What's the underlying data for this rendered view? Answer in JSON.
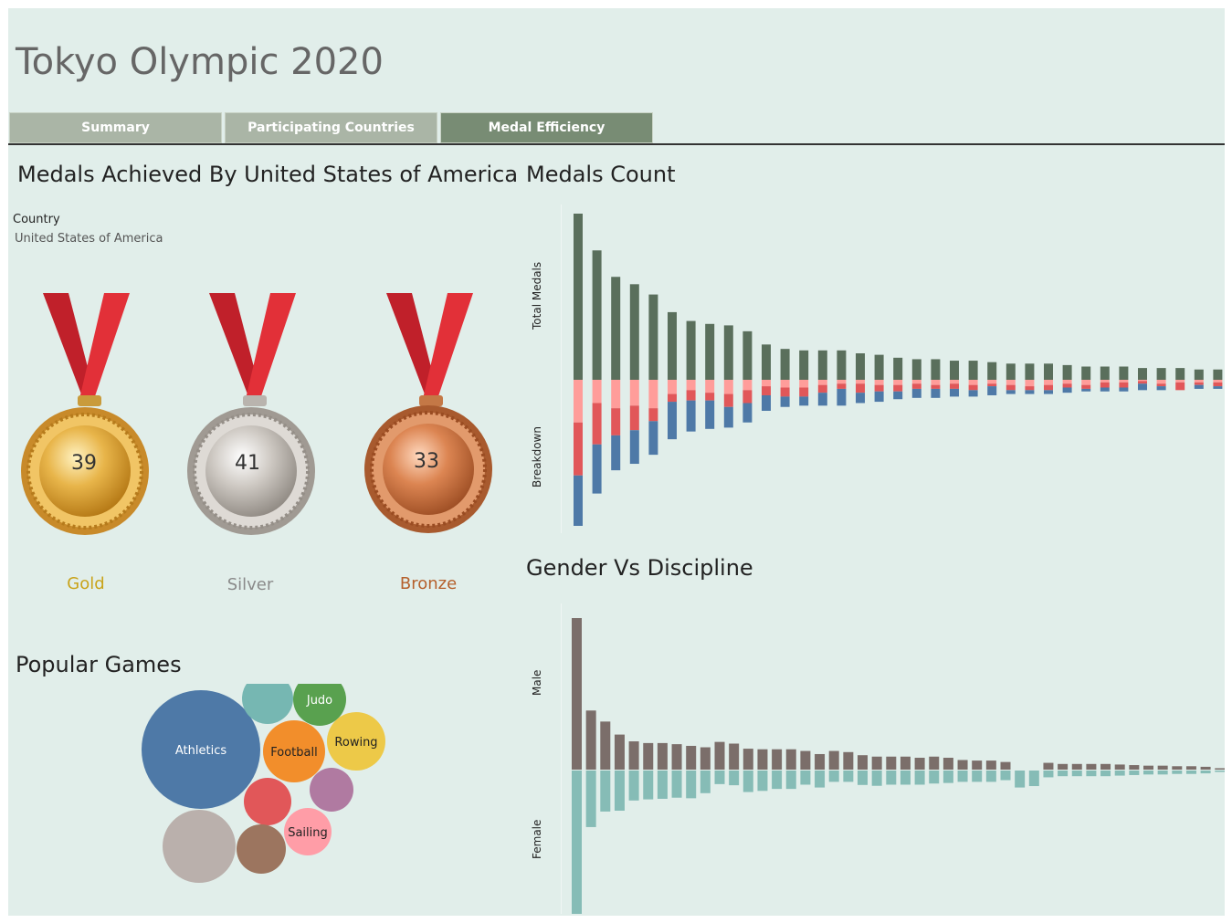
{
  "header": {
    "title": "Tokyo Olympic 2020"
  },
  "tabs": [
    {
      "label": "Summary",
      "active": false
    },
    {
      "label": "Participating Countries",
      "active": false
    },
    {
      "label": "Medal Efficiency",
      "active": true
    }
  ],
  "medals_panel": {
    "title": "Medals Achieved By United States of America",
    "filter_label": "Country",
    "filter_value": "United States of America",
    "medals": [
      {
        "name": "Gold",
        "count": "39",
        "color": "#c9a31a"
      },
      {
        "name": "Silver",
        "count": "41",
        "color": "#8a8a8a"
      },
      {
        "name": "Bronze",
        "count": "33",
        "color": "#b5602c"
      }
    ]
  },
  "popular_games": {
    "title": "Popular Games",
    "bubbles": [
      {
        "label": "Athletics",
        "color": "#4e79a7"
      },
      {
        "label": "",
        "color": "#76b7b2"
      },
      {
        "label": "Judo",
        "color": "#59a14f"
      },
      {
        "label": "Football",
        "color": "#f28e2b"
      },
      {
        "label": "Rowing",
        "color": "#edc948"
      },
      {
        "label": "",
        "color": "#e15759"
      },
      {
        "label": "",
        "color": "#b07aa1"
      },
      {
        "label": "Sailing",
        "color": "#ff9da7"
      },
      {
        "label": "",
        "color": "#9c755f"
      },
      {
        "label": "",
        "color": "#bab0ac"
      }
    ]
  },
  "chart_data": [
    {
      "type": "bar",
      "title": "Medals Count",
      "top_label": "Total Medals",
      "bottom_label": "Breakdown",
      "colors": {
        "total": "#5a6f5c",
        "bronze": "#ff9d9a",
        "silver": "#e15759",
        "gold": "#4e79a7"
      },
      "series": [
        {
          "name": "Total",
          "values": [
            113,
            88,
            70,
            65,
            58,
            46,
            40,
            38,
            37,
            33,
            24,
            21,
            20,
            20,
            20,
            18,
            17,
            15,
            14,
            14,
            13,
            13,
            12,
            11,
            11,
            11,
            10,
            9,
            9,
            9,
            8,
            8,
            8,
            7,
            7,
            7,
            7
          ]
        },
        {
          "name": "Bronze",
          "values": [
            33,
            18,
            22,
            20,
            22,
            11,
            8,
            10,
            11,
            8,
            5,
            6,
            6,
            4,
            3,
            3,
            4,
            4,
            3,
            4,
            3,
            4,
            3,
            4,
            5,
            4,
            3,
            4,
            2,
            2,
            1,
            3,
            2,
            2,
            2,
            2,
            1
          ]
        },
        {
          "name": "Silver",
          "values": [
            41,
            32,
            21,
            19,
            10,
            6,
            8,
            6,
            10,
            10,
            7,
            7,
            7,
            6,
            4,
            7,
            5,
            5,
            4,
            3,
            4,
            4,
            2,
            4,
            3,
            4,
            3,
            3,
            4,
            4,
            2,
            2,
            6,
            2,
            3,
            2,
            2
          ]
        },
        {
          "name": "Gold",
          "values": [
            39,
            38,
            27,
            26,
            26,
            29,
            24,
            22,
            16,
            15,
            12,
            8,
            7,
            10,
            13,
            8,
            8,
            6,
            7,
            7,
            6,
            5,
            7,
            3,
            3,
            3,
            4,
            2,
            3,
            3,
            5,
            3,
            0,
            3,
            2,
            3,
            4
          ]
        }
      ]
    },
    {
      "type": "bar",
      "title": "Gender Vs Discipline",
      "top_label": "Male",
      "bottom_label": "Female",
      "colors": {
        "male": "#7b6e6a",
        "female": "#86bcb6"
      },
      "series": [
        {
          "name": "Male",
          "values": [
            1072,
            418,
            340,
            248,
            200,
            188,
            188,
            180,
            168,
            158,
            196,
            184,
            148,
            144,
            144,
            144,
            132,
            110,
            132,
            124,
            102,
            92,
            92,
            92,
            84,
            92,
            84,
            68,
            64,
            64,
            54,
            0,
            0,
            48,
            40,
            40,
            40,
            40,
            36,
            32,
            28,
            28,
            24,
            24,
            20,
            10,
            6
          ]
        },
        {
          "name": "Female",
          "values": [
            1040,
            400,
            290,
            284,
            212,
            204,
            200,
            192,
            196,
            160,
            96,
            104,
            152,
            144,
            130,
            130,
            100,
            120,
            80,
            80,
            102,
            108,
            100,
            100,
            100,
            92,
            88,
            80,
            80,
            80,
            68,
            120,
            110,
            48,
            40,
            40,
            40,
            40,
            36,
            32,
            28,
            28,
            24,
            24,
            20,
            10,
            6
          ]
        }
      ]
    }
  ]
}
